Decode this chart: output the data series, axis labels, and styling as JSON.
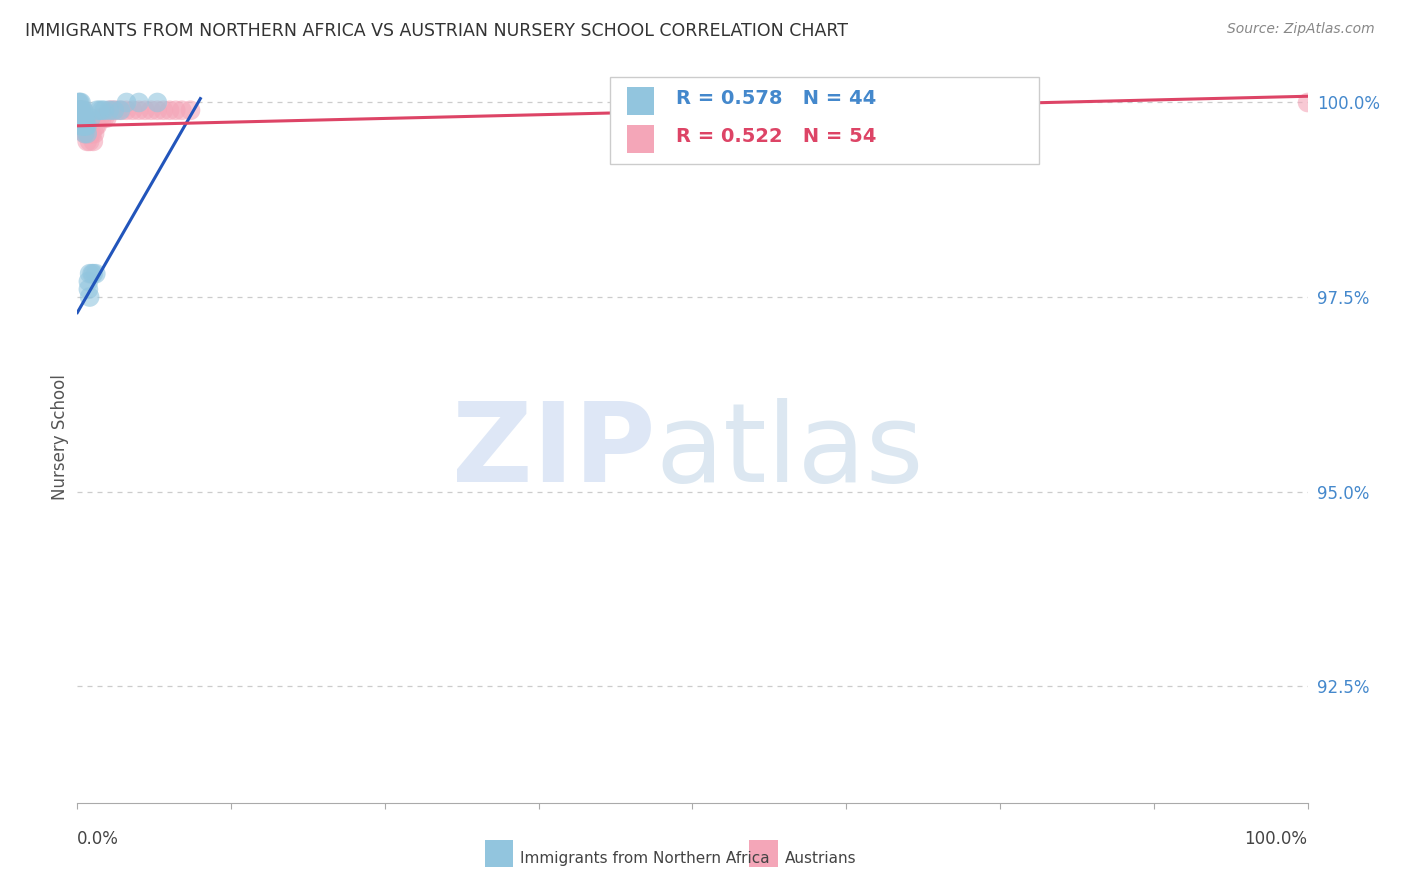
{
  "title": "IMMIGRANTS FROM NORTHERN AFRICA VS AUSTRIAN NURSERY SCHOOL CORRELATION CHART",
  "source": "Source: ZipAtlas.com",
  "ylabel": "Nursery School",
  "ylabel_right_ticks": [
    "100.0%",
    "97.5%",
    "95.0%",
    "92.5%"
  ],
  "ylabel_right_vals": [
    1.0,
    0.975,
    0.95,
    0.925
  ],
  "legend_label_blue": "Immigrants from Northern Africa",
  "legend_label_pink": "Austrians",
  "R_blue": 0.578,
  "N_blue": 44,
  "R_pink": 0.522,
  "N_pink": 54,
  "blue_color": "#92c5de",
  "pink_color": "#f4a6b8",
  "trend_blue": "#2255bb",
  "trend_pink": "#dd4466",
  "blue_points_x": [
    0.001,
    0.001,
    0.001,
    0.002,
    0.002,
    0.002,
    0.002,
    0.003,
    0.003,
    0.003,
    0.003,
    0.003,
    0.004,
    0.004,
    0.004,
    0.004,
    0.005,
    0.005,
    0.005,
    0.006,
    0.006,
    0.006,
    0.007,
    0.007,
    0.008,
    0.008,
    0.009,
    0.009,
    0.01,
    0.01,
    0.011,
    0.012,
    0.013,
    0.015,
    0.016,
    0.018,
    0.02,
    0.022,
    0.026,
    0.03,
    0.035,
    0.04,
    0.05,
    0.065
  ],
  "blue_points_y": [
    0.999,
    0.999,
    1.0,
    0.998,
    0.998,
    0.999,
    1.0,
    0.997,
    0.998,
    0.998,
    0.999,
    1.0,
    0.997,
    0.998,
    0.998,
    0.999,
    0.997,
    0.998,
    0.999,
    0.996,
    0.997,
    0.998,
    0.997,
    0.998,
    0.996,
    0.997,
    0.976,
    0.977,
    0.975,
    0.978,
    0.998,
    0.978,
    0.978,
    0.978,
    0.999,
    0.999,
    0.999,
    0.999,
    0.999,
    0.999,
    0.999,
    1.0,
    1.0,
    1.0
  ],
  "pink_points_x": [
    0.001,
    0.001,
    0.001,
    0.001,
    0.002,
    0.002,
    0.002,
    0.003,
    0.003,
    0.003,
    0.003,
    0.004,
    0.004,
    0.004,
    0.005,
    0.005,
    0.005,
    0.005,
    0.006,
    0.006,
    0.007,
    0.007,
    0.008,
    0.008,
    0.009,
    0.01,
    0.01,
    0.011,
    0.012,
    0.013,
    0.014,
    0.015,
    0.016,
    0.018,
    0.02,
    0.022,
    0.024,
    0.026,
    0.028,
    0.03,
    0.033,
    0.036,
    0.04,
    0.045,
    0.05,
    0.055,
    0.06,
    0.065,
    0.07,
    0.075,
    0.08,
    0.085,
    0.092,
    1.0
  ],
  "pink_points_y": [
    0.998,
    0.998,
    0.999,
    0.999,
    0.998,
    0.998,
    0.999,
    0.998,
    0.998,
    0.999,
    0.999,
    0.997,
    0.997,
    0.998,
    0.997,
    0.997,
    0.998,
    0.999,
    0.996,
    0.997,
    0.996,
    0.997,
    0.995,
    0.997,
    0.996,
    0.995,
    0.996,
    0.996,
    0.996,
    0.995,
    0.996,
    0.997,
    0.997,
    0.998,
    0.998,
    0.998,
    0.998,
    0.999,
    0.999,
    0.999,
    0.999,
    0.999,
    0.999,
    0.999,
    0.999,
    0.999,
    0.999,
    0.999,
    0.999,
    0.999,
    0.999,
    0.999,
    0.999,
    1.0
  ],
  "blue_trend_x": [
    0.0,
    0.1
  ],
  "blue_trend_y": [
    0.973,
    1.0005
  ],
  "pink_trend_x": [
    0.0,
    1.0
  ],
  "pink_trend_y": [
    0.997,
    1.0008
  ],
  "xlim": [
    0.0,
    1.0
  ],
  "ylim": [
    0.91,
    1.004
  ],
  "grid_color": "#cccccc",
  "background_color": "#ffffff",
  "title_color": "#333333",
  "axis_label_color": "#555555",
  "right_tick_color": "#4488cc"
}
